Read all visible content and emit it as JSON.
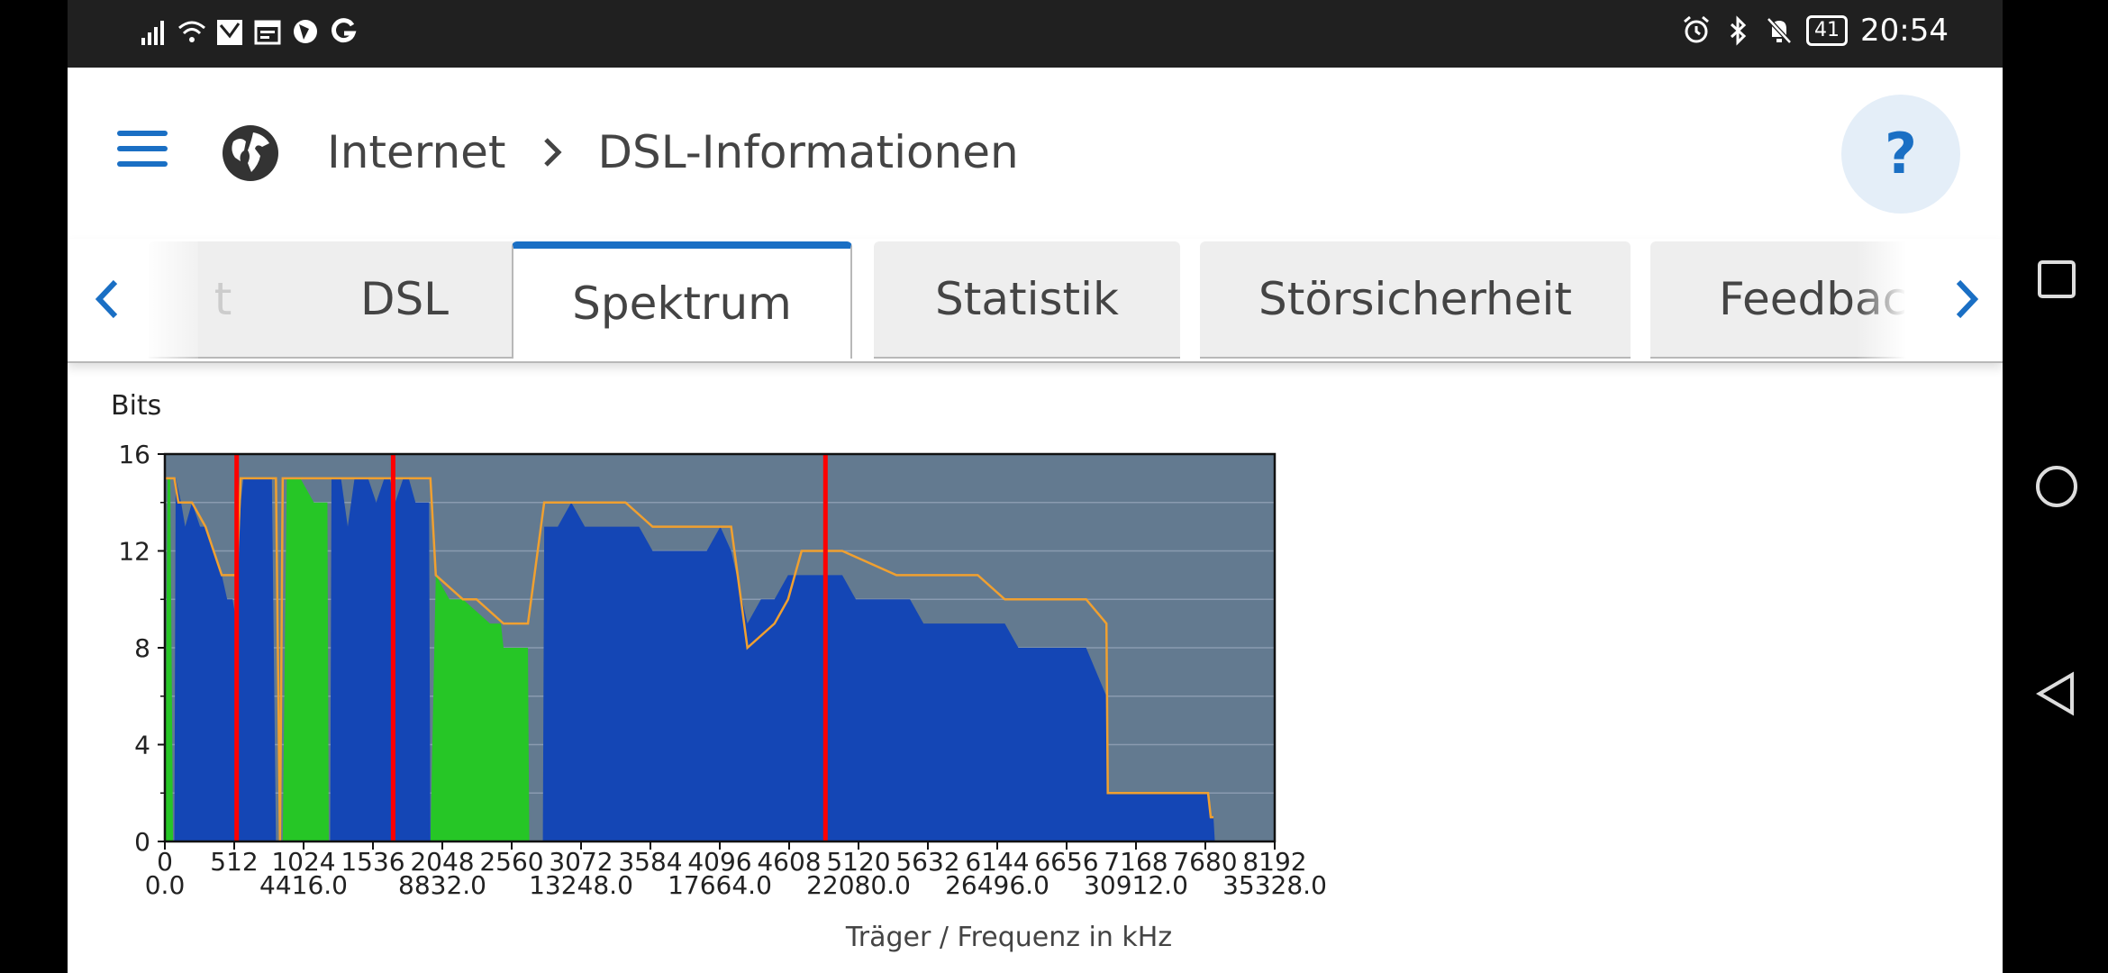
{
  "status_bar": {
    "time": "20:54",
    "battery": "41",
    "left_icons": [
      "signal-icon",
      "wifi-icon",
      "mail-icon",
      "calendar-icon",
      "browser-icon",
      "google-icon"
    ],
    "right_icons": [
      "alarm-icon",
      "bluetooth-icon",
      "mute-icon"
    ]
  },
  "header": {
    "breadcrumb_parent": "Internet",
    "breadcrumb_sep": ">",
    "breadcrumb_current": "DSL-Informationen",
    "help_label": "?"
  },
  "tabs": {
    "items": [
      {
        "label": "t"
      },
      {
        "label": "DSL"
      },
      {
        "label": "Spektrum"
      },
      {
        "label": "Statistik"
      },
      {
        "label": "Störsicherheit"
      },
      {
        "label": "Feedback"
      }
    ],
    "active": "Spektrum"
  },
  "chart_data": {
    "type": "area",
    "ylabel": "Bits",
    "xlabel": "Träger / Frequenz in kHz",
    "ylim": [
      0,
      16
    ],
    "yticks": [
      0,
      4,
      8,
      12,
      16
    ],
    "xlim": [
      0,
      8192
    ],
    "xticks": [
      0,
      512,
      1024,
      1536,
      2048,
      2560,
      3072,
      3584,
      4096,
      4608,
      5120,
      5632,
      6144,
      6656,
      7168,
      7680,
      8192
    ],
    "freq_ticks": [
      "0.0",
      "4416.0",
      "8832.0",
      "13248.0",
      "17664.0",
      "22080.0",
      "26496.0",
      "30912.0",
      "35328.0"
    ],
    "grid": true,
    "colors": {
      "background": "#637a90",
      "downstream": "#1446b5",
      "upstream": "#26c626",
      "max_line": "#f0a030",
      "marker": "#ff0000",
      "grid": "#8a9bb0"
    },
    "markers": [
      530,
      1685,
      4876
    ],
    "upstream": [
      {
        "x": [
          0,
          20,
          40,
          60,
          70
        ],
        "y": [
          0,
          15,
          15,
          0,
          0
        ]
      },
      {
        "x": [
          870,
          900,
          1000,
          1100,
          1200,
          1210,
          1220
        ],
        "y": [
          0,
          15,
          15,
          14,
          14,
          0,
          0
        ]
      },
      {
        "x": [
          1960,
          2000,
          2100,
          2200,
          2400,
          2480,
          2500,
          2680,
          2690
        ],
        "y": [
          0,
          11,
          10,
          10,
          9,
          9,
          8,
          8,
          0
        ]
      }
    ],
    "downstream": [
      {
        "x": [
          70,
          80,
          120,
          150,
          200,
          260,
          300,
          360,
          420,
          460,
          500,
          530,
          560,
          580,
          600,
          640,
          700,
          790,
          820
        ],
        "y": [
          0,
          15,
          14,
          13,
          14,
          13,
          13,
          12,
          11,
          10,
          10,
          9,
          14,
          15,
          15,
          15,
          15,
          15,
          0
        ]
      },
      {
        "x": [
          1220,
          1230,
          1300,
          1350,
          1400,
          1500,
          1560,
          1620,
          1660,
          1700,
          1760,
          1800,
          1850,
          1900,
          1950,
          1960
        ],
        "y": [
          0,
          15,
          15,
          13,
          15,
          15,
          14,
          15,
          15,
          14,
          15,
          15,
          14,
          14,
          14,
          0
        ]
      },
      {
        "x": [
          2790,
          2800,
          2900,
          3000,
          3100,
          3200,
          3300,
          3400,
          3500,
          3600,
          3700,
          3800,
          3900,
          4000,
          4100,
          4180,
          4300,
          4400,
          4500,
          4600,
          4700,
          4800,
          4900,
          5000,
          5100,
          5200,
          5300,
          5400,
          5500,
          5600,
          5700,
          5800,
          5900,
          6000,
          6100,
          6200,
          6300,
          6400,
          6500,
          6600,
          6700,
          6800,
          6950,
          6960,
          7000,
          7200,
          7400,
          7600,
          7700,
          7720,
          7740,
          7750
        ],
        "y": [
          0,
          13,
          13,
          14,
          13,
          13,
          13,
          13,
          13,
          12,
          12,
          12,
          12,
          12,
          13,
          12,
          9,
          10,
          10,
          11,
          11,
          11,
          11,
          11,
          10,
          10,
          10,
          10,
          10,
          9,
          9,
          9,
          9,
          9,
          9,
          9,
          8,
          8,
          8,
          8,
          8,
          8,
          6,
          2,
          2,
          2,
          2,
          2,
          2,
          1,
          1,
          0
        ]
      }
    ],
    "max_line": {
      "x": [
        0,
        20,
        60,
        70,
        100,
        200,
        300,
        360,
        420,
        460,
        500,
        530,
        560,
        700,
        820,
        850,
        870,
        1000,
        1200,
        1220,
        1500,
        1560,
        1660,
        1700,
        1900,
        1960,
        2000,
        2200,
        2300,
        2500,
        2680,
        2800,
        3000,
        3200,
        3400,
        3600,
        3700,
        3800,
        4000,
        4100,
        4180,
        4300,
        4500,
        4600,
        4700,
        4900,
        5000,
        5400,
        5500,
        5600,
        5700,
        6000,
        6200,
        6400,
        6500,
        6700,
        6800,
        6950,
        6960,
        7000,
        7200,
        7400,
        7600,
        7700,
        7720,
        7740
      ],
      "y": [
        15,
        15,
        15,
        15,
        14,
        14,
        13,
        12,
        11,
        11,
        11,
        11,
        15,
        15,
        15,
        0,
        15,
        15,
        15,
        15,
        15,
        15,
        15,
        15,
        15,
        15,
        11,
        10,
        10,
        9,
        9,
        14,
        14,
        14,
        14,
        13,
        13,
        13,
        13,
        13,
        13,
        8,
        9,
        10,
        12,
        12,
        12,
        11,
        11,
        11,
        11,
        11,
        10,
        10,
        10,
        10,
        10,
        9,
        2,
        2,
        2,
        2,
        2,
        2,
        1,
        1
      ]
    }
  }
}
